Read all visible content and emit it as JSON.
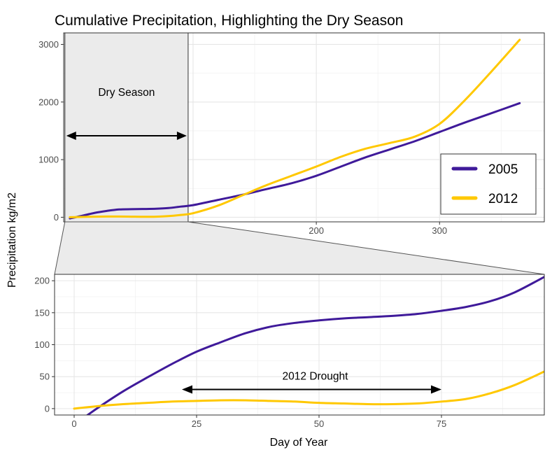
{
  "chart_data": [
    {
      "type": "line",
      "title": "Cumulative Precipitation, Highlighting the Dry Season",
      "xlabel": "Day of Year",
      "ylabel": "Precipitation kg/m2",
      "xlim": [
        -5,
        385
      ],
      "ylim": [
        -80,
        3200
      ],
      "x_ticks": [
        0,
        100,
        200,
        300
      ],
      "y_ticks": [
        0,
        1000,
        2000,
        3000
      ],
      "grid": true,
      "legend_position": "bottom-right",
      "highlight": {
        "label": "Dry Season",
        "x_range": [
          -4,
          96
        ]
      },
      "series": [
        {
          "name": "2005",
          "color": "#3f1a9a",
          "x": [
            0,
            10,
            20,
            30,
            40,
            50,
            60,
            70,
            80,
            90,
            100,
            120,
            140,
            160,
            180,
            200,
            220,
            240,
            260,
            280,
            300,
            320,
            340,
            365
          ],
          "y": [
            -20,
            25,
            75,
            110,
            135,
            140,
            143,
            148,
            160,
            185,
            210,
            300,
            390,
            490,
            590,
            720,
            880,
            1040,
            1180,
            1320,
            1480,
            1640,
            1790,
            1980
          ]
        },
        {
          "name": "2012",
          "color": "#ffc800",
          "x": [
            0,
            10,
            20,
            30,
            40,
            50,
            60,
            70,
            80,
            90,
            100,
            120,
            140,
            160,
            180,
            200,
            220,
            240,
            260,
            280,
            300,
            320,
            340,
            365
          ],
          "y": [
            0,
            5,
            10,
            12,
            12,
            10,
            8,
            10,
            20,
            40,
            70,
            200,
            380,
            560,
            720,
            880,
            1050,
            1190,
            1290,
            1400,
            1620,
            2020,
            2480,
            3080
          ]
        }
      ]
    },
    {
      "type": "line",
      "xlabel": "Day of Year",
      "ylabel": "Precipitation kg/m2",
      "xlim": [
        -4,
        96
      ],
      "ylim": [
        -10,
        210
      ],
      "x_ticks": [
        0,
        25,
        50,
        75
      ],
      "y_ticks": [
        0,
        50,
        100,
        150,
        200
      ],
      "grid": true,
      "annotation": {
        "label": "2012 Drought",
        "x_range": [
          22,
          75
        ],
        "y": 30
      },
      "series": [
        {
          "name": "2005",
          "color": "#3f1a9a",
          "x": [
            0,
            5,
            10,
            15,
            20,
            25,
            30,
            35,
            40,
            45,
            50,
            55,
            60,
            65,
            70,
            75,
            80,
            85,
            90,
            96
          ],
          "y": [
            -25,
            2,
            27,
            49,
            70,
            89,
            104,
            118,
            128,
            134,
            138,
            141,
            143,
            145,
            148,
            153,
            159,
            168,
            182,
            206
          ]
        },
        {
          "name": "2012",
          "color": "#ffc800",
          "x": [
            0,
            5,
            10,
            15,
            20,
            25,
            30,
            35,
            40,
            45,
            50,
            55,
            60,
            65,
            70,
            75,
            80,
            85,
            90,
            96
          ],
          "y": [
            0,
            4,
            7,
            9,
            11,
            12,
            13,
            13,
            12,
            11,
            9,
            8,
            7,
            7,
            8,
            11,
            15,
            24,
            37,
            58
          ]
        }
      ]
    }
  ]
}
